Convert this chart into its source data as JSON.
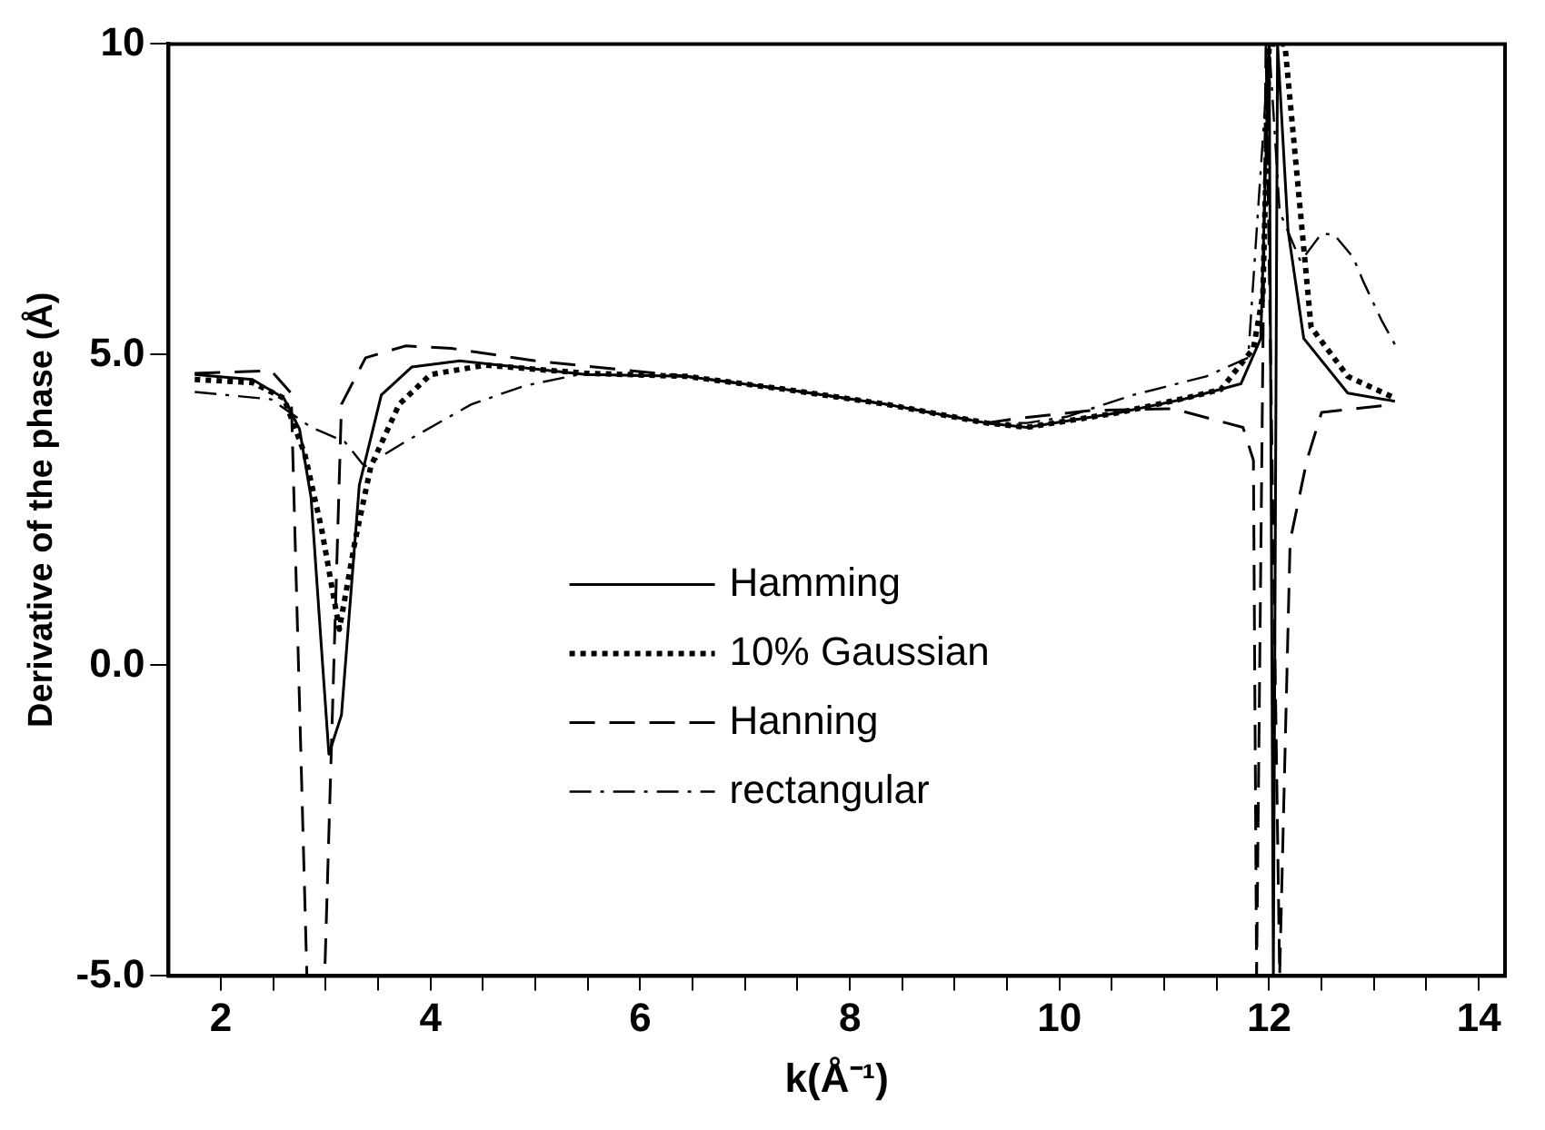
{
  "chart_data": {
    "type": "line",
    "xlabel": "k(Å⁻¹)",
    "ylabel": "Derivative of the phase (Å)",
    "xlim": [
      1.5,
      14.25
    ],
    "ylim": [
      -5,
      10
    ],
    "xticks": [
      2,
      {
        "value": 2.5,
        "label": null
      },
      {
        "value": 3,
        "label": null
      },
      {
        "value": 3.5,
        "label": null
      },
      4,
      {
        "value": 4.5,
        "label": null
      },
      {
        "value": 5,
        "label": null
      },
      {
        "value": 5.5,
        "label": null
      },
      6,
      {
        "value": 6.5,
        "label": null
      },
      {
        "value": 7,
        "label": null
      },
      {
        "value": 7.5,
        "label": null
      },
      8,
      {
        "value": 8.5,
        "label": null
      },
      {
        "value": 9,
        "label": null
      },
      {
        "value": 9.5,
        "label": null
      },
      10,
      {
        "value": 10.5,
        "label": null
      },
      {
        "value": 11,
        "label": null
      },
      {
        "value": 11.5,
        "label": null
      },
      12,
      {
        "value": 12.5,
        "label": null
      },
      {
        "value": 13,
        "label": null
      },
      {
        "value": 13.5,
        "label": null
      },
      14
    ],
    "yticks": [
      {
        "value": -5,
        "label": "-5.0"
      },
      {
        "value": 0,
        "label": "0.0"
      },
      {
        "value": 5,
        "label": "5.0"
      },
      10
    ],
    "grid": false,
    "legend": "center",
    "marker": "none",
    "series": [
      {
        "name": "Hamming",
        "color": "#000000",
        "line_style": "solid",
        "x": [
          1.75,
          2.3,
          2.6,
          2.75,
          2.86,
          2.95,
          3.03,
          3.15,
          3.32,
          3.53,
          3.82,
          4.28,
          5.48,
          6.44,
          7.39,
          8.35,
          9.3,
          9.69,
          10.58,
          11.2,
          11.73,
          11.92,
          12.0,
          12.04,
          12.08,
          12.18,
          12.33,
          12.75,
          13.2
        ],
        "values": [
          4.68,
          4.6,
          4.3,
          3.8,
          2.7,
          0.5,
          -1.43,
          -0.8,
          2.9,
          4.35,
          4.8,
          4.9,
          4.68,
          4.65,
          4.44,
          4.2,
          3.9,
          3.83,
          4.07,
          4.29,
          4.53,
          5.26,
          10,
          -5,
          10,
          7,
          5.26,
          4.38,
          4.25
        ]
      },
      {
        "name": "10% Gaussian",
        "color": "#000000",
        "line_style": "dotted",
        "x": [
          1.75,
          2.3,
          2.6,
          2.8,
          2.96,
          3.13,
          3.28,
          3.43,
          3.7,
          4.0,
          4.52,
          5.48,
          6.44,
          7.39,
          8.35,
          9.3,
          9.69,
          10.58,
          11.2,
          11.54,
          11.85,
          11.94,
          12.0,
          12.15,
          12.4,
          12.75,
          13.2
        ],
        "values": [
          4.6,
          4.55,
          4.3,
          3.4,
          2.2,
          0.58,
          2.0,
          3.2,
          4.2,
          4.68,
          4.83,
          4.7,
          4.65,
          4.44,
          4.2,
          3.9,
          3.83,
          4.07,
          4.3,
          4.44,
          5.1,
          5.96,
          10,
          10,
          5.44,
          4.65,
          4.3
        ]
      },
      {
        "name": "Hanning",
        "color": "#000000",
        "line_style": "dashed",
        "x": [
          1.75,
          2.48,
          2.67,
          2.82,
          2.99,
          3.15,
          3.38,
          3.76,
          4.2,
          5.0,
          6.44,
          7.39,
          8.35,
          9.3,
          9.63,
          10.3,
          11.08,
          11.75,
          11.85,
          11.88,
          11.97,
          12.1,
          12.2,
          12.36,
          12.5,
          13.2
        ],
        "values": [
          4.7,
          4.74,
          4.38,
          -5,
          -5,
          4.2,
          4.95,
          5.14,
          5.1,
          4.9,
          4.65,
          4.44,
          4.2,
          3.9,
          3.98,
          4.1,
          4.13,
          3.83,
          3.3,
          -5,
          10,
          -5,
          2.0,
          3.3,
          4.07,
          4.2
        ]
      },
      {
        "name": "rectangular",
        "color": "#000000",
        "line_style": "dashdot",
        "x": [
          1.75,
          2.48,
          2.86,
          3.18,
          3.37,
          3.76,
          4.39,
          4.9,
          5.42,
          6.44,
          7.39,
          8.35,
          9.3,
          9.69,
          10.07,
          10.7,
          11.4,
          11.8,
          12.0,
          12.1,
          12.3,
          12.5,
          12.62,
          12.8,
          12.9,
          13.07,
          13.22
        ],
        "values": [
          4.4,
          4.28,
          3.83,
          3.6,
          3.2,
          3.6,
          4.2,
          4.5,
          4.68,
          4.65,
          4.44,
          4.2,
          3.9,
          3.9,
          4.0,
          4.35,
          4.65,
          4.95,
          10,
          7.3,
          6.5,
          6.95,
          6.93,
          6.57,
          6.17,
          5.56,
          5.1
        ]
      }
    ]
  }
}
